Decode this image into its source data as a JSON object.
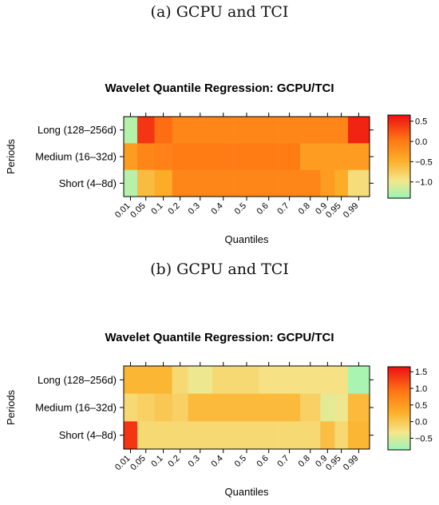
{
  "captions": [
    "(a) GCPU and TCI",
    "(b) GCPU and TCI"
  ],
  "chart_data": [
    {
      "type": "heatmap",
      "title": "Wavelet Quantile Regression: GCPU/TCI",
      "xlabel": "Quantiles",
      "ylabel": "Periods",
      "x": [
        "0.01",
        "0.05",
        "0.1",
        "0.2",
        "0.3",
        "0.4",
        "0.5",
        "0.6",
        "0.7",
        "0.8",
        "0.9",
        "0.95",
        "0.99"
      ],
      "y": [
        "Long (128–256d)",
        "Medium (16–32d)",
        "Short (4–8d)"
      ],
      "z": [
        [
          -1.3,
          0.45,
          0.1,
          -0.1,
          -0.1,
          -0.1,
          -0.1,
          -0.1,
          -0.1,
          -0.1,
          -0.1,
          -0.1,
          0.55
        ],
        [
          -0.3,
          -0.1,
          -0.05,
          0.0,
          0.0,
          0.0,
          0.0,
          0.0,
          0.0,
          -0.3,
          -0.3,
          -0.3,
          -0.3
        ],
        [
          -1.3,
          -0.6,
          -0.45,
          -0.1,
          -0.1,
          -0.1,
          -0.1,
          -0.1,
          -0.1,
          -0.1,
          -0.3,
          -0.45,
          -0.9
        ]
      ],
      "colorbar": {
        "ticks": [
          "0.5",
          "0.0",
          "−0.5",
          "−1.0"
        ],
        "tick_values": [
          0.5,
          0.0,
          -0.5,
          -1.0
        ],
        "range": [
          -1.4,
          0.65
        ]
      }
    },
    {
      "type": "heatmap",
      "title": "Wavelet Quantile Regression: GCPU/TCI",
      "xlabel": "Quantiles",
      "ylabel": "Periods",
      "x": [
        "0.01",
        "0.05",
        "0.1",
        "0.2",
        "0.3",
        "0.4",
        "0.5",
        "0.6",
        "0.7",
        "0.8",
        "0.9",
        "0.95",
        "0.99"
      ],
      "y": [
        "Long (128–256d)",
        "Medium (16–32d)",
        "Short (4–8d)"
      ],
      "z": [
        [
          0.2,
          0.2,
          0.2,
          -0.2,
          -0.4,
          -0.2,
          -0.2,
          -0.3,
          -0.3,
          -0.3,
          -0.3,
          -0.3,
          -0.8
        ],
        [
          -0.2,
          -0.1,
          0.0,
          -0.1,
          0.15,
          0.15,
          0.15,
          0.15,
          0.15,
          -0.1,
          -0.45,
          -0.4,
          0.15
        ],
        [
          1.4,
          -0.2,
          -0.2,
          -0.2,
          -0.2,
          -0.2,
          -0.2,
          -0.2,
          -0.2,
          -0.2,
          0.1,
          -0.2,
          0.2
        ]
      ],
      "colorbar": {
        "ticks": [
          "1.5",
          "1.0",
          "0.5",
          "0.0",
          "−0.5"
        ],
        "tick_values": [
          1.5,
          1.0,
          0.5,
          0.0,
          -0.5
        ],
        "range": [
          -0.85,
          1.65
        ]
      }
    }
  ]
}
